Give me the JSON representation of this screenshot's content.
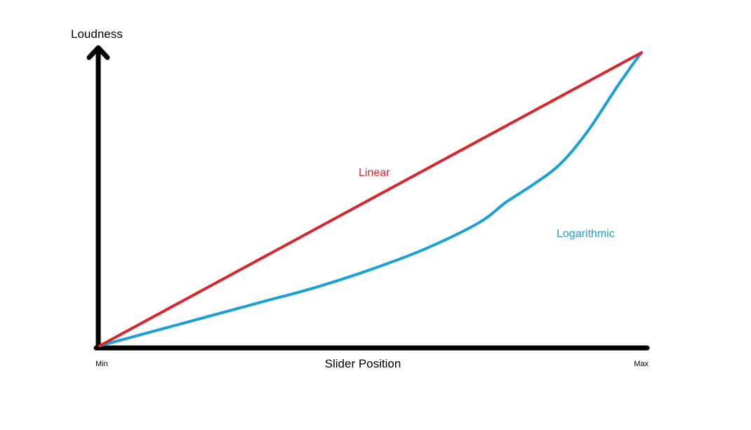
{
  "chart_data": {
    "type": "line",
    "title": "",
    "xlabel": "Slider Position",
    "ylabel": "Loudness",
    "x_tick_labels": [
      "Min",
      "Max"
    ],
    "xlim": [
      0,
      1
    ],
    "ylim": [
      0,
      1
    ],
    "grid": false,
    "legend": "none",
    "series": [
      {
        "name": "Linear",
        "color": "#d9262b",
        "x": [
          0,
          1
        ],
        "y": [
          0,
          1
        ]
      },
      {
        "name": "Logarithmic",
        "color": "#1aa0d8",
        "x": [
          0,
          0.1,
          0.2,
          0.3,
          0.4,
          0.5,
          0.6,
          0.7,
          0.75,
          0.8,
          0.85,
          0.9,
          0.95,
          0.98,
          1.0
        ],
        "y": [
          0,
          0.05,
          0.1,
          0.15,
          0.2,
          0.26,
          0.33,
          0.42,
          0.49,
          0.55,
          0.62,
          0.73,
          0.87,
          0.95,
          1.0
        ]
      }
    ]
  }
}
